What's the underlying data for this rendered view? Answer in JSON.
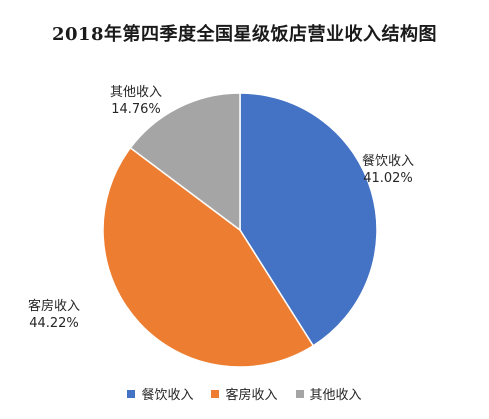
{
  "chart_data": {
    "type": "pie",
    "title": "2018年第四季度全国星级饭店营业收入结构图",
    "legend_position": "bottom",
    "slices": [
      {
        "name": "餐饮收入",
        "value": 41.02,
        "value_label": "41.02%",
        "color": "#4472c4"
      },
      {
        "name": "客房收入",
        "value": 44.22,
        "value_label": "44.22%",
        "color": "#ed7d31"
      },
      {
        "name": "其他收入",
        "value": 14.76,
        "value_label": "14.76%",
        "color": "#a5a5a5"
      }
    ],
    "legend": [
      {
        "name": "餐饮收入",
        "color": "#4472c4"
      },
      {
        "name": "客房收入",
        "color": "#ed7d31"
      },
      {
        "name": "其他收入",
        "color": "#a5a5a5"
      }
    ]
  }
}
